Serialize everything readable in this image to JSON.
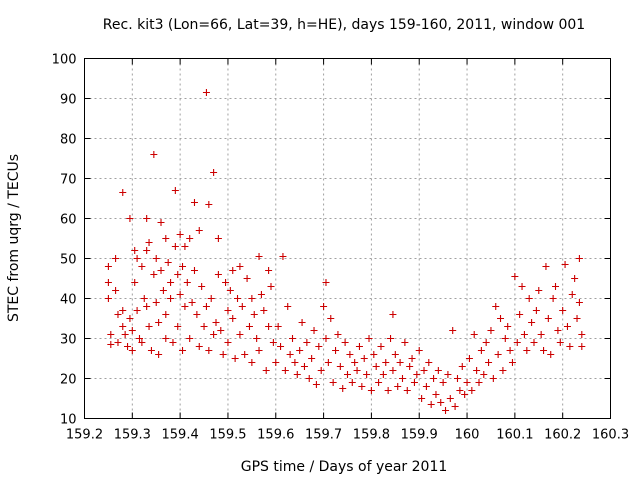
{
  "chart_data": {
    "type": "scatter",
    "title": "Rec. kit3 (Lon=66, Lat=39, h=HE), days 159-160, 2011, window 001",
    "xlabel": "GPS time / Days of year 2011",
    "ylabel": "STEC from uqrg / TECUs",
    "xlim": [
      159.2,
      160.3
    ],
    "ylim": [
      10,
      100
    ],
    "xticks": [
      "159.2",
      "159.3",
      "159.4",
      "159.5",
      "159.6",
      "159.7",
      "159.8",
      "159.9",
      "160",
      "160.1",
      "160.2",
      "160.3"
    ],
    "yticks": [
      "10",
      "20",
      "30",
      "40",
      "50",
      "60",
      "70",
      "80",
      "90",
      "100"
    ],
    "grid": true,
    "marker": "+",
    "color": "#cc0000",
    "series": [
      {
        "points": [
          [
            159.25,
            48
          ],
          [
            159.25,
            44
          ],
          [
            159.25,
            40
          ],
          [
            159.255,
            31
          ],
          [
            159.255,
            28.5
          ],
          [
            159.265,
            50
          ],
          [
            159.265,
            42
          ],
          [
            159.27,
            36
          ],
          [
            159.27,
            29
          ],
          [
            159.28,
            66.5
          ],
          [
            159.28,
            37
          ],
          [
            159.28,
            33
          ],
          [
            159.285,
            31
          ],
          [
            159.29,
            28
          ],
          [
            159.295,
            60
          ],
          [
            159.295,
            35
          ],
          [
            159.3,
            32
          ],
          [
            159.3,
            27
          ],
          [
            159.305,
            52
          ],
          [
            159.305,
            44
          ],
          [
            159.31,
            50
          ],
          [
            159.31,
            37
          ],
          [
            159.315,
            30
          ],
          [
            159.32,
            48
          ],
          [
            159.32,
            29
          ],
          [
            159.325,
            40
          ],
          [
            159.33,
            60
          ],
          [
            159.33,
            52
          ],
          [
            159.33,
            38
          ],
          [
            159.335,
            54
          ],
          [
            159.335,
            33
          ],
          [
            159.34,
            27
          ],
          [
            159.345,
            76
          ],
          [
            159.345,
            46
          ],
          [
            159.35,
            50
          ],
          [
            159.35,
            39
          ],
          [
            159.355,
            34
          ],
          [
            159.355,
            26
          ],
          [
            159.36,
            59
          ],
          [
            159.36,
            47
          ],
          [
            159.365,
            42
          ],
          [
            159.37,
            55
          ],
          [
            159.37,
            36
          ],
          [
            159.37,
            30
          ],
          [
            159.375,
            49
          ],
          [
            159.38,
            44
          ],
          [
            159.38,
            40
          ],
          [
            159.385,
            29
          ],
          [
            159.39,
            67
          ],
          [
            159.39,
            53
          ],
          [
            159.395,
            46
          ],
          [
            159.395,
            33
          ],
          [
            159.4,
            56
          ],
          [
            159.4,
            41
          ],
          [
            159.405,
            48
          ],
          [
            159.405,
            27
          ],
          [
            159.41,
            53
          ],
          [
            159.41,
            38
          ],
          [
            159.415,
            44
          ],
          [
            159.42,
            55
          ],
          [
            159.42,
            30
          ],
          [
            159.425,
            39
          ],
          [
            159.43,
            64
          ],
          [
            159.43,
            47
          ],
          [
            159.435,
            36
          ],
          [
            159.44,
            57
          ],
          [
            159.44,
            28
          ],
          [
            159.445,
            43
          ],
          [
            159.45,
            33
          ],
          [
            159.455,
            91.5
          ],
          [
            159.455,
            38
          ],
          [
            159.46,
            63.5
          ],
          [
            159.46,
            27
          ],
          [
            159.465,
            40
          ],
          [
            159.47,
            71.5
          ],
          [
            159.47,
            31
          ],
          [
            159.475,
            34
          ],
          [
            159.48,
            55
          ],
          [
            159.48,
            46
          ],
          [
            159.485,
            32
          ],
          [
            159.49,
            26
          ],
          [
            159.495,
            44
          ],
          [
            159.5,
            37
          ],
          [
            159.5,
            29
          ],
          [
            159.505,
            42
          ],
          [
            159.51,
            47
          ],
          [
            159.51,
            35
          ],
          [
            159.515,
            25
          ],
          [
            159.52,
            40
          ],
          [
            159.525,
            48
          ],
          [
            159.525,
            31
          ],
          [
            159.53,
            38
          ],
          [
            159.535,
            26
          ],
          [
            159.54,
            45
          ],
          [
            159.545,
            33
          ],
          [
            159.55,
            40
          ],
          [
            159.55,
            24
          ],
          [
            159.555,
            36
          ],
          [
            159.56,
            30
          ],
          [
            159.565,
            50.5
          ],
          [
            159.565,
            27
          ],
          [
            159.57,
            41
          ],
          [
            159.575,
            37
          ],
          [
            159.58,
            22
          ],
          [
            159.585,
            47
          ],
          [
            159.585,
            33
          ],
          [
            159.59,
            43
          ],
          [
            159.595,
            29
          ],
          [
            159.6,
            24
          ],
          [
            159.605,
            33
          ],
          [
            159.61,
            28
          ],
          [
            159.615,
            50.5
          ],
          [
            159.62,
            22
          ],
          [
            159.625,
            38
          ],
          [
            159.63,
            26
          ],
          [
            159.635,
            30
          ],
          [
            159.64,
            24
          ],
          [
            159.645,
            21
          ],
          [
            159.65,
            27
          ],
          [
            159.655,
            34
          ],
          [
            159.66,
            23
          ],
          [
            159.665,
            29
          ],
          [
            159.67,
            20
          ],
          [
            159.675,
            25
          ],
          [
            159.68,
            32
          ],
          [
            159.685,
            18.5
          ],
          [
            159.69,
            28
          ],
          [
            159.695,
            22
          ],
          [
            159.7,
            38
          ],
          [
            159.705,
            44
          ],
          [
            159.705,
            30
          ],
          [
            159.71,
            24
          ],
          [
            159.715,
            35
          ],
          [
            159.72,
            19
          ],
          [
            159.725,
            27
          ],
          [
            159.73,
            31
          ],
          [
            159.735,
            23
          ],
          [
            159.74,
            17.5
          ],
          [
            159.745,
            29
          ],
          [
            159.75,
            21
          ],
          [
            159.755,
            26
          ],
          [
            159.76,
            19
          ],
          [
            159.765,
            24
          ],
          [
            159.77,
            22
          ],
          [
            159.775,
            28
          ],
          [
            159.78,
            18
          ],
          [
            159.785,
            25
          ],
          [
            159.79,
            21
          ],
          [
            159.795,
            30
          ],
          [
            159.8,
            17
          ],
          [
            159.805,
            26
          ],
          [
            159.81,
            23
          ],
          [
            159.815,
            19
          ],
          [
            159.82,
            28
          ],
          [
            159.825,
            21
          ],
          [
            159.83,
            24
          ],
          [
            159.835,
            17
          ],
          [
            159.84,
            30
          ],
          [
            159.845,
            36
          ],
          [
            159.845,
            22
          ],
          [
            159.85,
            26
          ],
          [
            159.855,
            18
          ],
          [
            159.86,
            24
          ],
          [
            159.865,
            20
          ],
          [
            159.87,
            29
          ],
          [
            159.875,
            17
          ],
          [
            159.88,
            23
          ],
          [
            159.885,
            25
          ],
          [
            159.89,
            19
          ],
          [
            159.895,
            21
          ],
          [
            159.9,
            27
          ],
          [
            159.905,
            15
          ],
          [
            159.91,
            22
          ],
          [
            159.915,
            18
          ],
          [
            159.92,
            24
          ],
          [
            159.925,
            13.5
          ],
          [
            159.93,
            20
          ],
          [
            159.935,
            16
          ],
          [
            159.94,
            22
          ],
          [
            159.945,
            14
          ],
          [
            159.95,
            19
          ],
          [
            159.955,
            12
          ],
          [
            159.96,
            21
          ],
          [
            159.965,
            15
          ],
          [
            159.97,
            32
          ],
          [
            159.975,
            13
          ],
          [
            159.98,
            20
          ],
          [
            159.985,
            17
          ],
          [
            159.99,
            23
          ],
          [
            159.995,
            16
          ],
          [
            160.0,
            19
          ],
          [
            160.005,
            25
          ],
          [
            160.01,
            17
          ],
          [
            160.015,
            31
          ],
          [
            160.02,
            22
          ],
          [
            160.025,
            19
          ],
          [
            160.03,
            27
          ],
          [
            160.035,
            21
          ],
          [
            160.04,
            29
          ],
          [
            160.045,
            24
          ],
          [
            160.05,
            32
          ],
          [
            160.055,
            20
          ],
          [
            160.06,
            38
          ],
          [
            160.065,
            26
          ],
          [
            160.07,
            35
          ],
          [
            160.075,
            22
          ],
          [
            160.08,
            30
          ],
          [
            160.085,
            33
          ],
          [
            160.09,
            27
          ],
          [
            160.095,
            24
          ],
          [
            160.1,
            45.5
          ],
          [
            160.105,
            29
          ],
          [
            160.11,
            36
          ],
          [
            160.115,
            43
          ],
          [
            160.12,
            31
          ],
          [
            160.125,
            27
          ],
          [
            160.13,
            40
          ],
          [
            160.135,
            34
          ],
          [
            160.14,
            29
          ],
          [
            160.145,
            37
          ],
          [
            160.15,
            42
          ],
          [
            160.155,
            31
          ],
          [
            160.16,
            27
          ],
          [
            160.165,
            48
          ],
          [
            160.17,
            35
          ],
          [
            160.175,
            26
          ],
          [
            160.18,
            40
          ],
          [
            160.185,
            43
          ],
          [
            160.19,
            32
          ],
          [
            160.195,
            29
          ],
          [
            160.2,
            37
          ],
          [
            160.205,
            48.5
          ],
          [
            160.21,
            33
          ],
          [
            160.215,
            28
          ],
          [
            160.22,
            41
          ],
          [
            160.225,
            45
          ],
          [
            160.23,
            35
          ],
          [
            160.235,
            50
          ],
          [
            160.235,
            39
          ],
          [
            160.24,
            31
          ],
          [
            160.24,
            28
          ]
        ]
      }
    ]
  }
}
